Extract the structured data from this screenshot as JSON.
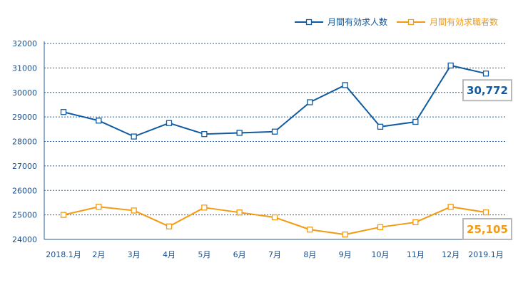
{
  "chart_data": {
    "type": "line",
    "categories": [
      "2018.1月",
      "2月",
      "3月",
      "4月",
      "5月",
      "6月",
      "7月",
      "8月",
      "9月",
      "10月",
      "11月",
      "12月",
      "2019.1月"
    ],
    "ylim": [
      24000,
      32000
    ],
    "yticks": [
      24000,
      25000,
      26000,
      27000,
      28000,
      29000,
      30000,
      31000,
      32000
    ],
    "grid": true,
    "legend_position": "top-right",
    "series": [
      {
        "name": "月間有効求人数",
        "color": "#0f5aa0",
        "values": [
          29200,
          28850,
          28200,
          28750,
          28300,
          28350,
          28400,
          29600,
          30300,
          28600,
          28800,
          31100,
          30772
        ]
      },
      {
        "name": "月間有効求職者数",
        "color": "#f39a12",
        "values": [
          25000,
          25330,
          25180,
          24530,
          25300,
          25100,
          24900,
          24400,
          24200,
          24500,
          24700,
          25330,
          25105
        ]
      }
    ],
    "annotations": [
      {
        "series": 0,
        "text": "30,772",
        "color": "#0f5aa0"
      },
      {
        "series": 1,
        "text": "25,105",
        "color": "#f39a12"
      }
    ]
  }
}
